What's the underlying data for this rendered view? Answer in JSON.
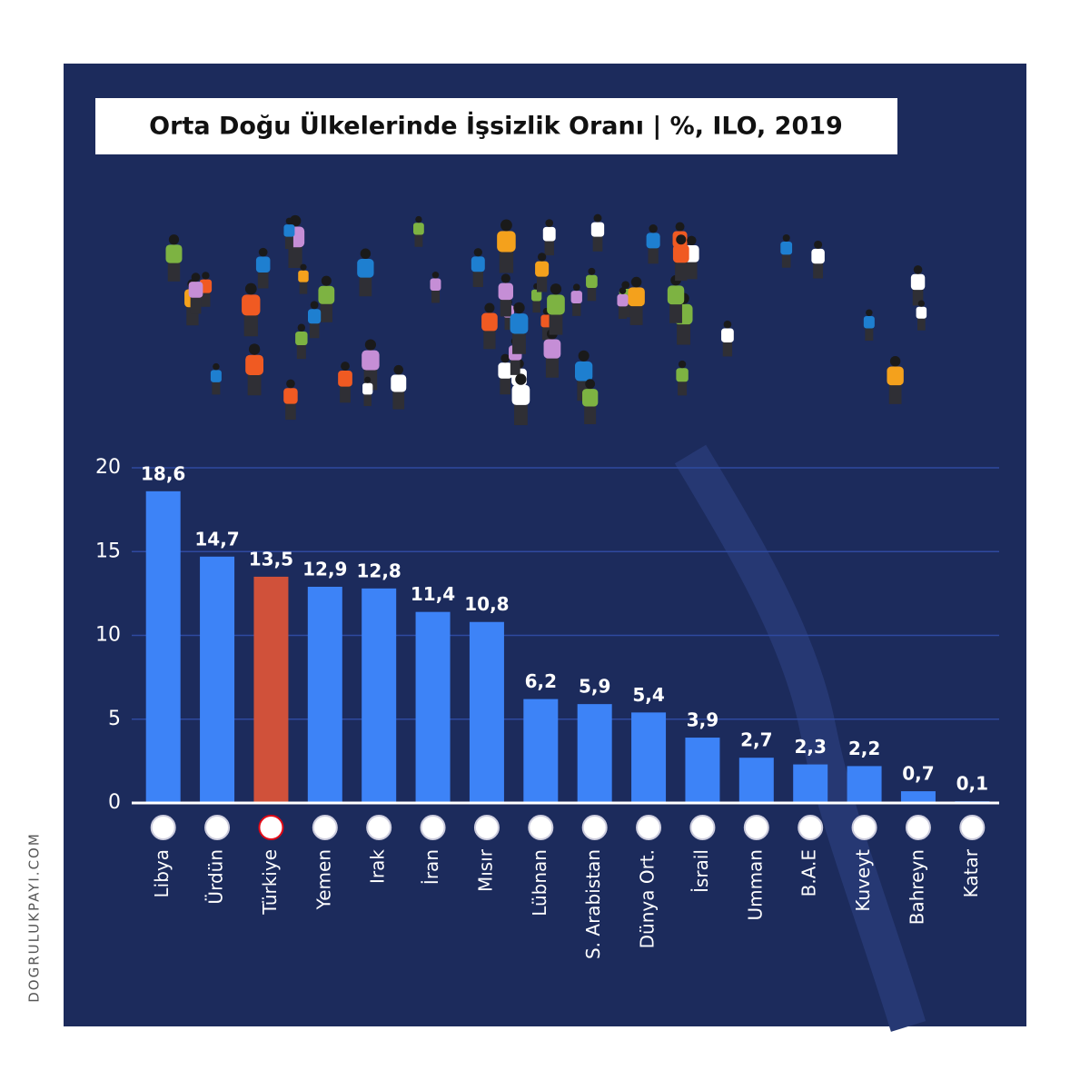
{
  "chart_data": {
    "type": "bar",
    "title": "Orta Doğu Ülkelerinde İşsizlik Oranı | %, ILO, 2019",
    "categories": [
      "Libya",
      "Ürdün",
      "Türkiye",
      "Yemen",
      "Irak",
      "İran",
      "Mısır",
      "Lübnan",
      "S. Arabistan",
      "Dünya Ort.",
      "İsrail",
      "Umman",
      "B.A.E",
      "Kuveyt",
      "Bahreyn",
      "Katar"
    ],
    "values": [
      18.6,
      14.7,
      13.5,
      12.9,
      12.8,
      11.4,
      10.8,
      6.2,
      5.9,
      5.4,
      3.9,
      2.7,
      2.3,
      2.2,
      0.7,
      0.1
    ],
    "value_labels": [
      "18,6",
      "14,7",
      "13,5",
      "12,9",
      "12,8",
      "11,4",
      "10,8",
      "6,2",
      "5,9",
      "5,4",
      "3,9",
      "2,7",
      "2,3",
      "2,2",
      "0,7",
      "0,1"
    ],
    "colors": [
      "#3d83f7",
      "#3d83f7",
      "#d0513a",
      "#3d83f7",
      "#3d83f7",
      "#3d83f7",
      "#3d83f7",
      "#3d83f7",
      "#3d83f7",
      "#3d83f7",
      "#3d83f7",
      "#3d83f7",
      "#3d83f7",
      "#3d83f7",
      "#3d83f7",
      "#3d83f7"
    ],
    "ylim": [
      0,
      20
    ],
    "yticks": [
      0,
      5,
      10,
      15,
      20
    ],
    "grid": true
  },
  "watermark": "DOGRULUKPAYI.COM"
}
